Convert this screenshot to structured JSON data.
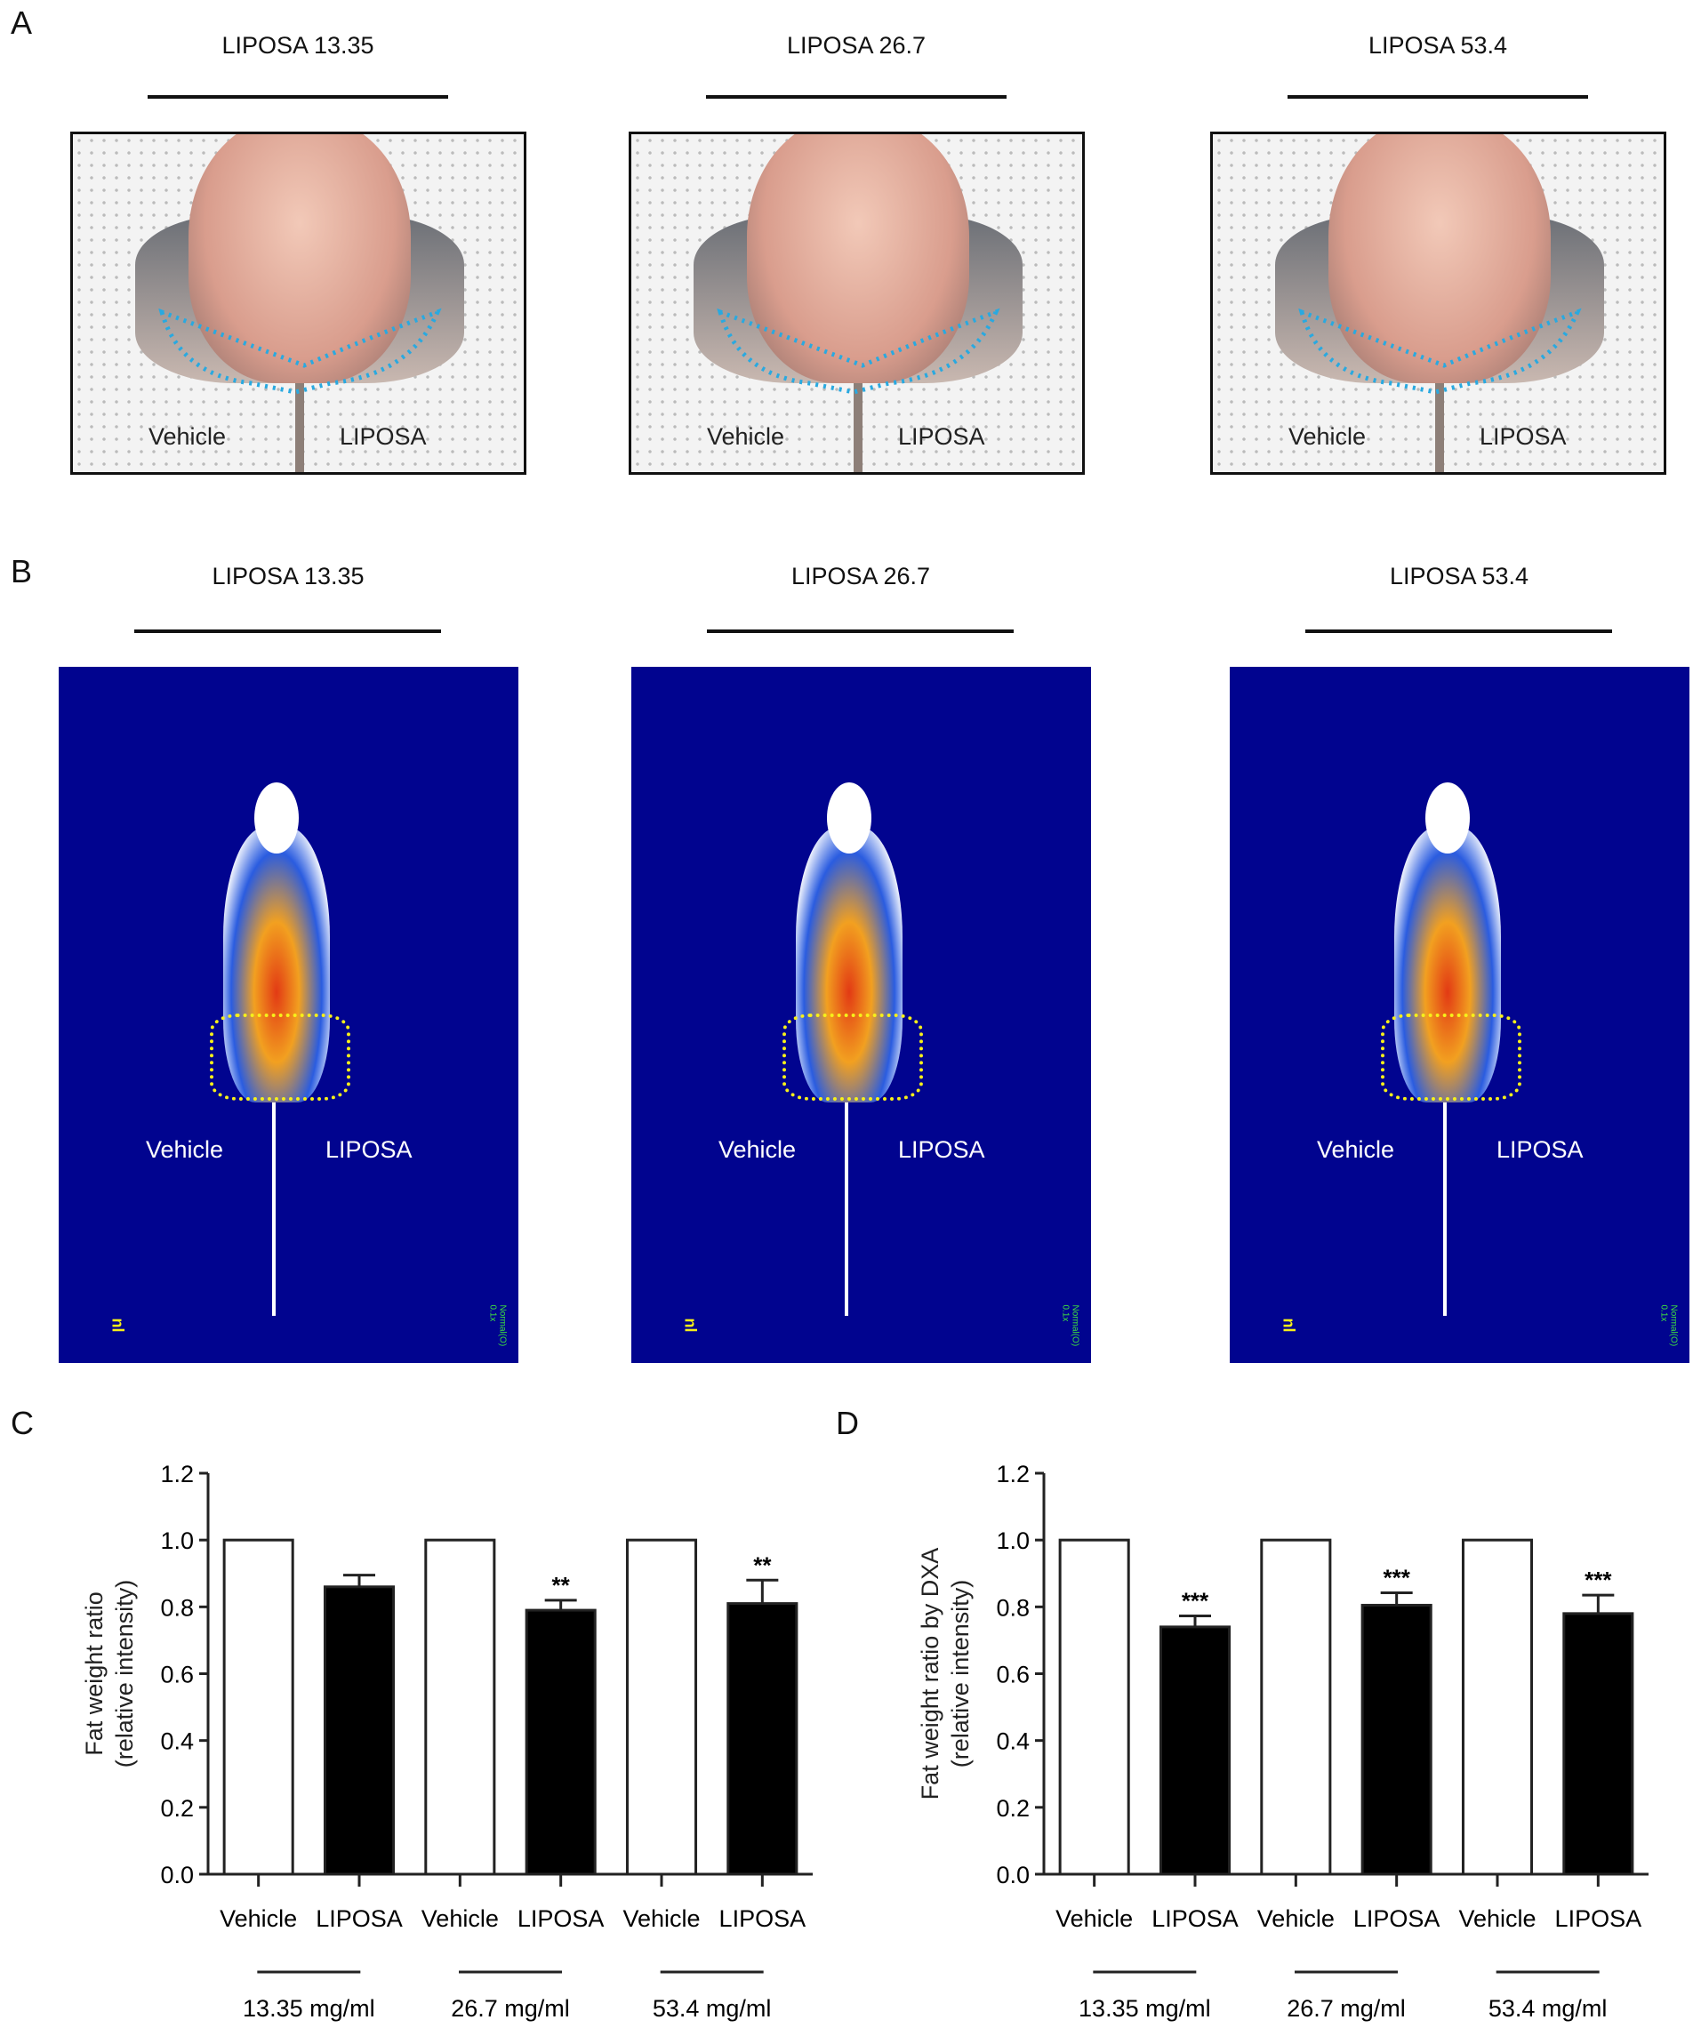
{
  "panels": {
    "a": "A",
    "b": "B",
    "c": "C",
    "d": "D"
  },
  "groups": [
    "LIPOSA 13.35",
    "LIPOSA 26.7",
    "LIPOSA 53.4"
  ],
  "photo_labels": {
    "left": "Vehicle",
    "right": "LIPOSA"
  },
  "dxa_indicator": "nl",
  "dxa_corner": "Normal(O) 0.1x",
  "colors": {
    "outline_a": "#29a9e0",
    "outline_b": "#f7f01a",
    "dxa_bg": "#01048f"
  },
  "chart_data": [
    {
      "type": "bar",
      "panel": "C",
      "ylabel": "Fat weight ratio\n(relative intensity)",
      "ylim": [
        0,
        1.2
      ],
      "yticks": [
        "0.0",
        "0.2",
        "0.4",
        "0.6",
        "0.8",
        "1.0",
        "1.2"
      ],
      "categories": [
        "Vehicle",
        "LIPOSA",
        "Vehicle",
        "LIPOSA",
        "Vehicle",
        "LIPOSA"
      ],
      "groups": [
        "13.35 mg/ml",
        "26.7 mg/ml",
        "53.4 mg/ml"
      ],
      "values": [
        1.0,
        0.86,
        1.0,
        0.79,
        1.0,
        0.81
      ],
      "errors": [
        0,
        0.035,
        0,
        0.03,
        0,
        0.07
      ],
      "significance": [
        "",
        "",
        "",
        "**",
        "",
        "**"
      ],
      "fills": [
        "#ffffff",
        "#000000",
        "#ffffff",
        "#000000",
        "#ffffff",
        "#000000"
      ]
    },
    {
      "type": "bar",
      "panel": "D",
      "ylabel": "Fat weight ratio by DXA\n(relative intensity)",
      "ylim": [
        0,
        1.2
      ],
      "yticks": [
        "0.0",
        "0.2",
        "0.4",
        "0.6",
        "0.8",
        "1.0",
        "1.2"
      ],
      "categories": [
        "Vehicle",
        "LIPOSA",
        "Vehicle",
        "LIPOSA",
        "Vehicle",
        "LIPOSA"
      ],
      "groups": [
        "13.35 mg/ml",
        "26.7 mg/ml",
        "53.4 mg/ml"
      ],
      "values": [
        1.0,
        0.74,
        1.0,
        0.805,
        1.0,
        0.78
      ],
      "errors": [
        0,
        0.033,
        0,
        0.037,
        0,
        0.055
      ],
      "significance": [
        "",
        "***",
        "",
        "***",
        "",
        "***"
      ],
      "fills": [
        "#ffffff",
        "#000000",
        "#ffffff",
        "#000000",
        "#ffffff",
        "#000000"
      ]
    }
  ]
}
